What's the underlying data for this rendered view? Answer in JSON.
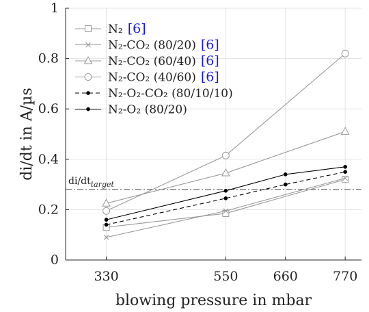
{
  "chart_data": {
    "type": "line",
    "xlabel": "blowing pressure in mbar",
    "ylabel": "di/dt in A/µs",
    "x_ticks": [
      330,
      550,
      660,
      770
    ],
    "y_ticks": [
      0,
      0.2,
      0.4,
      0.6,
      0.8,
      1
    ],
    "y_tick_labels": [
      "0",
      "0.2",
      "0.4",
      "0.6",
      "0.8",
      "1"
    ],
    "xlim": [
      255,
      800
    ],
    "ylim": [
      0,
      1
    ],
    "grid": true,
    "legend_position": "top-left",
    "citation_color": "#1a1ad9",
    "series": [
      {
        "name": "N₂",
        "ref": "[6]",
        "marker": "square",
        "dash": "solid",
        "color": "#999999",
        "x": [
          330,
          550,
          770
        ],
        "values": [
          0.13,
          0.185,
          0.32
        ]
      },
      {
        "name": "N₂-CO₂ (80/20)",
        "ref": "[6]",
        "marker": "x",
        "dash": "solid",
        "color": "#999999",
        "x": [
          330,
          550,
          770
        ],
        "values": [
          0.09,
          0.195,
          0.325
        ]
      },
      {
        "name": "N₂-CO₂ (60/40)",
        "ref": "[6]",
        "marker": "triangle",
        "dash": "solid",
        "color": "#999999",
        "x": [
          330,
          550,
          770
        ],
        "values": [
          0.225,
          0.345,
          0.51
        ]
      },
      {
        "name": "N₂-CO₂ (40/60)",
        "ref": "[6]",
        "marker": "circle",
        "dash": "solid",
        "color": "#999999",
        "x": [
          330,
          550,
          770
        ],
        "values": [
          0.195,
          0.415,
          0.82
        ]
      },
      {
        "name": "N₂-O₂-CO₂ (80/10/10)",
        "marker": "dot",
        "dash": "dashed",
        "color": "#000000",
        "x": [
          330,
          550,
          660,
          770
        ],
        "values": [
          0.14,
          0.245,
          0.3,
          0.35
        ]
      },
      {
        "name": "N₂-O₂ (80/20)",
        "marker": "dot",
        "dash": "solid",
        "color": "#000000",
        "x": [
          330,
          550,
          660,
          770
        ],
        "values": [
          0.16,
          0.275,
          0.34,
          0.37
        ]
      }
    ],
    "reference_line": {
      "label": "di/dt",
      "label_subscript": "target",
      "y": 0.28,
      "style": "dash-dot",
      "color": "#555555"
    }
  }
}
